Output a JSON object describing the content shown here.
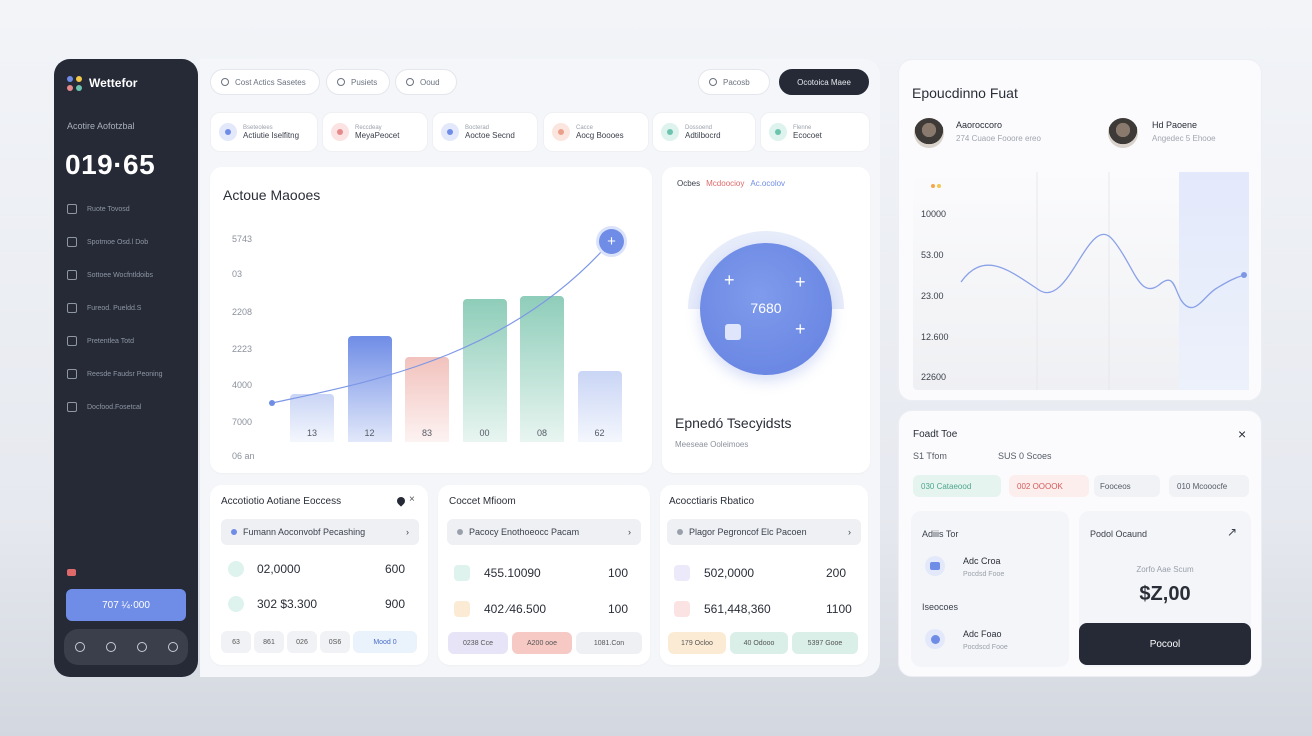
{
  "sidebar": {
    "app_name": "Wettefor",
    "subtitle": "Acotire Aofotzbal",
    "big_value": "019·65",
    "items": [
      {
        "label": "Ruote Tovosd"
      },
      {
        "label": "Spotmoe Osd.l Dob"
      },
      {
        "label": "Sottoee Wocfntldoibs"
      },
      {
        "label": "Fureod. Pueldd.S"
      },
      {
        "label": "Pretentlea Totd"
      },
      {
        "label": "Reesde Faudsr Peoning"
      },
      {
        "label": "Docfood.Fosetcal"
      }
    ],
    "button_label": "707 ¼·000",
    "colors": {
      "bg": "#252a36",
      "accent": "#6f8de6"
    }
  },
  "topbar": {
    "filters": [
      "Cost Actics Sasetes",
      "Pusiets",
      "Ooud"
    ],
    "search_label": "Pacosb",
    "primary_button": "Ocotoica Maee"
  },
  "tiles": [
    {
      "caption": "Bseteolees",
      "label": "Actiutie Iselfitng",
      "color": "#6f8de6"
    },
    {
      "caption": "Reccdeay",
      "label": "MeyaPeocet",
      "color": "#e58a8a"
    },
    {
      "caption": "Bocterad",
      "label": "Aoctoe Secnd",
      "color": "#6f8de6"
    },
    {
      "caption": "Cacce",
      "label": "Aocg Boooes",
      "color": "#e8a08a"
    },
    {
      "caption": "Dossoend",
      "label": "Adtilbocrd",
      "color": "#6cc3ae"
    },
    {
      "caption": "Flenne",
      "label": "Ecocoet",
      "color": "#6cc3ae"
    }
  ],
  "chart": {
    "title": "Actoue Maooes",
    "y_ticks": [
      "5743",
      "03",
      "2208",
      "2223",
      "4000",
      "7000",
      "06 an"
    ],
    "callout_symbol": "+"
  },
  "chart_data": {
    "type": "bar",
    "categories": [
      "13",
      "12",
      "83",
      "00",
      "08",
      "62"
    ],
    "values": [
      35,
      78,
      62,
      105,
      107,
      52
    ],
    "colors": [
      "#c9d5f5",
      "#6f8de6",
      "#f2c2bd",
      "#8ecdb9",
      "#8ecdb9",
      "#c9d5f5"
    ]
  },
  "gauge": {
    "legend": [
      "Ocbes",
      "Mcdoocioy",
      "Ac.ocolov"
    ],
    "value": "7680",
    "title": "Epnedó Tsecyidsts",
    "subtitle": "Meeseae Ooleimoes"
  },
  "blocks": [
    {
      "title": "Accotiotio Aotiane Eoccess",
      "search": "Fumann Aoconvobf Pecashing",
      "rows": [
        {
          "value": "02,0000",
          "right": "600",
          "color": "#8ecdb9"
        },
        {
          "value": "302  $3.300",
          "right": "900",
          "color": "#8ecdb9"
        }
      ],
      "chips": [
        "63",
        "861",
        "026",
        "0S6",
        "Mood 0"
      ]
    },
    {
      "title": "Coccet Mfioom",
      "search": "Pacocy Enothoeocc Pacam",
      "rows": [
        {
          "value": "455.10090",
          "right": "100",
          "color": "#8ecdb9"
        },
        {
          "value": "402 ⁄46.500",
          "right": "100",
          "color": "#f2c08a"
        }
      ],
      "chips": [
        "0238 Cce",
        "A200 ooe",
        "1081.Con"
      ]
    },
    {
      "title": "Acocctiaris Rbatico",
      "search": "Plagor Pegroncof Elc Pacoen",
      "rows": [
        {
          "value": "502,0000",
          "right": "200",
          "color": "#8b7fd6"
        },
        {
          "value": "561,448,360",
          "right": "1100",
          "color": "#e58a8a"
        }
      ],
      "chips": [
        "179 Ocloo",
        "40 Odooo",
        "5397 Gooe"
      ]
    }
  ],
  "right_top": {
    "title": "Epoucdinno Fuat",
    "people": [
      {
        "name": "Aaoroccoro",
        "meta": "274 Cuaoe Fooore ereo"
      },
      {
        "name": "Hd Paoene",
        "meta": "Angedec 5 Ehooe"
      }
    ],
    "y_ticks": [
      "10000",
      "53.00",
      "23.00",
      "12.600",
      "22600"
    ]
  },
  "right_bottom": {
    "title": "Foadt Toe",
    "close": "×",
    "sub_left": "S1 Tfom",
    "sub_right": "SUS 0 Scoes",
    "tags": [
      "030  Cataeood",
      "002  OOOOK",
      "Fooceos",
      "010  Mcooocfe"
    ],
    "left_head": "Adiiis Tor",
    "left_item1_name": "Adc Croa",
    "left_item1_sub": "Pocdsd Fooe",
    "left_head2": "Iseocoes",
    "left_item2_name": "Adc Foao",
    "left_item2_sub": "Pocdscd Fooe",
    "right_head": "Podol Ocaund",
    "right_sub": "Zorfo Aae Scum",
    "right_value": "$Z,00",
    "button": "Pocool"
  }
}
